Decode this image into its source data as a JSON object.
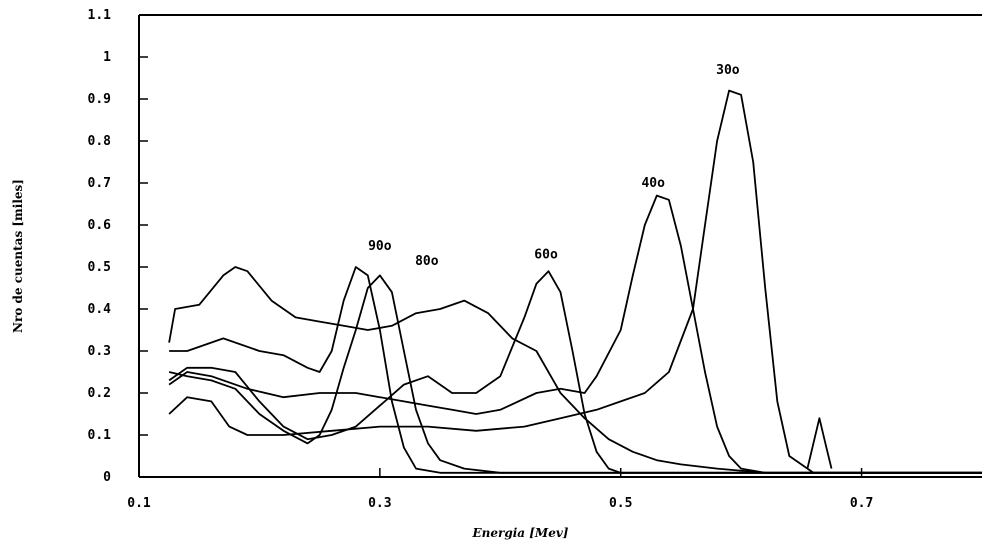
{
  "chart_data": {
    "type": "line",
    "xlabel": "Energia [Mev]",
    "ylabel": "Nro de cuentas [miles]",
    "xlim": [
      0.1,
      0.8
    ],
    "ylim": [
      0,
      1.1
    ],
    "x_ticks": [
      "0.1",
      "0.3",
      "0.5",
      "0.7"
    ],
    "y_ticks": [
      "0",
      "0.1",
      "0.2",
      "0.3",
      "0.4",
      "0.5",
      "0.6",
      "0.7",
      "0.8",
      "0.9",
      "1",
      "1.1"
    ],
    "x_tick_values": [
      0.1,
      0.3,
      0.5,
      0.7
    ],
    "y_tick_values": [
      0,
      0.1,
      0.2,
      0.3,
      0.4,
      0.5,
      0.6,
      0.7,
      0.8,
      0.9,
      1.0,
      1.1
    ],
    "grid": false,
    "series": [
      {
        "name": "30o",
        "label_at": [
          0.589,
          0.96
        ],
        "points": [
          [
            0.125,
            0.15
          ],
          [
            0.14,
            0.19
          ],
          [
            0.16,
            0.18
          ],
          [
            0.175,
            0.12
          ],
          [
            0.19,
            0.1
          ],
          [
            0.22,
            0.1
          ],
          [
            0.26,
            0.11
          ],
          [
            0.3,
            0.12
          ],
          [
            0.34,
            0.12
          ],
          [
            0.38,
            0.11
          ],
          [
            0.42,
            0.12
          ],
          [
            0.45,
            0.14
          ],
          [
            0.48,
            0.16
          ],
          [
            0.5,
            0.18
          ],
          [
            0.52,
            0.2
          ],
          [
            0.54,
            0.25
          ],
          [
            0.56,
            0.4
          ],
          [
            0.57,
            0.6
          ],
          [
            0.58,
            0.8
          ],
          [
            0.59,
            0.92
          ],
          [
            0.6,
            0.91
          ],
          [
            0.61,
            0.75
          ],
          [
            0.62,
            0.45
          ],
          [
            0.63,
            0.18
          ],
          [
            0.64,
            0.05
          ],
          [
            0.66,
            0.01
          ],
          [
            0.8,
            0.01
          ]
        ]
      },
      {
        "name": "40o",
        "label_at": [
          0.527,
          0.69
        ],
        "points": [
          [
            0.125,
            0.22
          ],
          [
            0.14,
            0.25
          ],
          [
            0.16,
            0.24
          ],
          [
            0.19,
            0.21
          ],
          [
            0.22,
            0.19
          ],
          [
            0.25,
            0.2
          ],
          [
            0.28,
            0.2
          ],
          [
            0.3,
            0.19
          ],
          [
            0.32,
            0.18
          ],
          [
            0.34,
            0.17
          ],
          [
            0.36,
            0.16
          ],
          [
            0.38,
            0.15
          ],
          [
            0.4,
            0.16
          ],
          [
            0.43,
            0.2
          ],
          [
            0.45,
            0.21
          ],
          [
            0.47,
            0.2
          ],
          [
            0.48,
            0.24
          ],
          [
            0.5,
            0.35
          ],
          [
            0.51,
            0.48
          ],
          [
            0.52,
            0.6
          ],
          [
            0.53,
            0.67
          ],
          [
            0.54,
            0.66
          ],
          [
            0.55,
            0.55
          ],
          [
            0.56,
            0.4
          ],
          [
            0.57,
            0.25
          ],
          [
            0.58,
            0.12
          ],
          [
            0.59,
            0.05
          ],
          [
            0.6,
            0.02
          ],
          [
            0.62,
            0.01
          ],
          [
            0.8,
            0.01
          ]
        ]
      },
      {
        "name": "60o",
        "label_at": [
          0.438,
          0.52
        ],
        "points": [
          [
            0.125,
            0.23
          ],
          [
            0.14,
            0.26
          ],
          [
            0.16,
            0.26
          ],
          [
            0.18,
            0.25
          ],
          [
            0.2,
            0.18
          ],
          [
            0.22,
            0.12
          ],
          [
            0.24,
            0.09
          ],
          [
            0.26,
            0.1
          ],
          [
            0.28,
            0.12
          ],
          [
            0.3,
            0.17
          ],
          [
            0.32,
            0.22
          ],
          [
            0.34,
            0.24
          ],
          [
            0.36,
            0.2
          ],
          [
            0.38,
            0.2
          ],
          [
            0.4,
            0.24
          ],
          [
            0.42,
            0.38
          ],
          [
            0.43,
            0.46
          ],
          [
            0.44,
            0.49
          ],
          [
            0.45,
            0.44
          ],
          [
            0.46,
            0.3
          ],
          [
            0.47,
            0.15
          ],
          [
            0.48,
            0.06
          ],
          [
            0.49,
            0.02
          ],
          [
            0.5,
            0.01
          ],
          [
            0.8,
            0.01
          ]
        ]
      },
      {
        "name": "80o",
        "label_at": [
          0.339,
          0.505
        ],
        "points": [
          [
            0.125,
            0.25
          ],
          [
            0.14,
            0.24
          ],
          [
            0.16,
            0.23
          ],
          [
            0.18,
            0.21
          ],
          [
            0.2,
            0.15
          ],
          [
            0.22,
            0.11
          ],
          [
            0.24,
            0.08
          ],
          [
            0.25,
            0.1
          ],
          [
            0.26,
            0.16
          ],
          [
            0.27,
            0.26
          ],
          [
            0.28,
            0.35
          ],
          [
            0.29,
            0.45
          ],
          [
            0.3,
            0.48
          ],
          [
            0.31,
            0.44
          ],
          [
            0.32,
            0.3
          ],
          [
            0.33,
            0.16
          ],
          [
            0.34,
            0.08
          ],
          [
            0.35,
            0.04
          ],
          [
            0.37,
            0.02
          ],
          [
            0.4,
            0.01
          ],
          [
            0.8,
            0.01
          ]
        ]
      },
      {
        "name": "90o",
        "label_at": [
          0.3,
          0.54
        ],
        "points": [
          [
            0.125,
            0.3
          ],
          [
            0.14,
            0.3
          ],
          [
            0.17,
            0.33
          ],
          [
            0.2,
            0.3
          ],
          [
            0.22,
            0.29
          ],
          [
            0.24,
            0.26
          ],
          [
            0.25,
            0.25
          ],
          [
            0.26,
            0.3
          ],
          [
            0.27,
            0.42
          ],
          [
            0.28,
            0.5
          ],
          [
            0.29,
            0.48
          ],
          [
            0.3,
            0.35
          ],
          [
            0.31,
            0.18
          ],
          [
            0.32,
            0.07
          ],
          [
            0.33,
            0.02
          ],
          [
            0.35,
            0.01
          ],
          [
            0.8,
            0.01
          ]
        ]
      },
      {
        "name": "",
        "points": [
          [
            0.125,
            0.32
          ],
          [
            0.13,
            0.4
          ],
          [
            0.15,
            0.41
          ],
          [
            0.17,
            0.48
          ],
          [
            0.18,
            0.5
          ],
          [
            0.19,
            0.49
          ],
          [
            0.21,
            0.42
          ],
          [
            0.23,
            0.38
          ],
          [
            0.25,
            0.37
          ],
          [
            0.27,
            0.36
          ],
          [
            0.29,
            0.35
          ],
          [
            0.31,
            0.36
          ],
          [
            0.33,
            0.39
          ],
          [
            0.35,
            0.4
          ],
          [
            0.37,
            0.42
          ],
          [
            0.39,
            0.39
          ],
          [
            0.41,
            0.33
          ],
          [
            0.43,
            0.3
          ],
          [
            0.45,
            0.2
          ],
          [
            0.47,
            0.14
          ],
          [
            0.49,
            0.09
          ],
          [
            0.51,
            0.06
          ],
          [
            0.53,
            0.04
          ],
          [
            0.55,
            0.03
          ],
          [
            0.58,
            0.02
          ],
          [
            0.62,
            0.01
          ],
          [
            0.8,
            0.01
          ]
        ]
      },
      {
        "name": "",
        "points": [
          [
            0.655,
            0.02
          ],
          [
            0.66,
            0.08
          ],
          [
            0.665,
            0.14
          ],
          [
            0.67,
            0.08
          ],
          [
            0.675,
            0.02
          ]
        ]
      }
    ]
  }
}
